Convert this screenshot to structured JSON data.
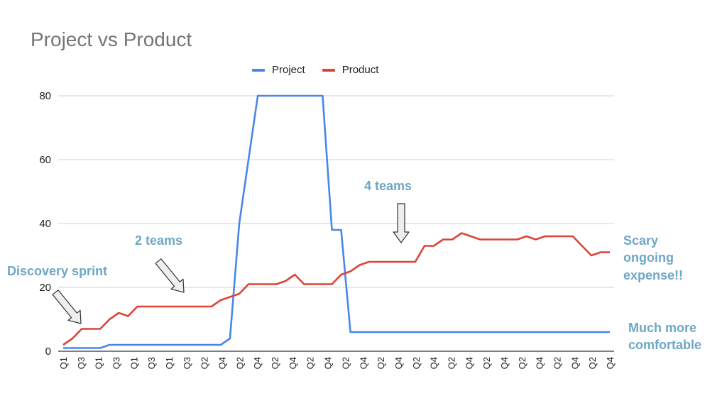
{
  "chart_data": {
    "type": "line",
    "title": "Project vs Product",
    "xlabel": "",
    "ylabel": "",
    "ylim": [
      0,
      80
    ],
    "yticks": [
      0,
      20,
      40,
      60,
      80
    ],
    "grid": true,
    "legend_position": "top",
    "x": [
      "Q1",
      "Q2",
      "Q3",
      "Q4",
      "Q1",
      "Q2",
      "Q3",
      "Q4",
      "Q1",
      "Q2",
      "Q3",
      "Q4",
      "Q1",
      "Q2",
      "Q3",
      "Q4",
      "Q1",
      "Q2",
      "Q3",
      "Q4",
      "Q1",
      "Q2",
      "Q3",
      "Q4",
      "Q1",
      "Q2",
      "Q3",
      "Q4",
      "Q1",
      "Q2",
      "Q3",
      "Q4",
      "Q1",
      "Q2",
      "Q3",
      "Q4",
      "Q1",
      "Q2",
      "Q3",
      "Q4",
      "Q1",
      "Q2",
      "Q3",
      "Q4",
      "Q1",
      "Q2",
      "Q3",
      "Q4",
      "Q1",
      "Q2",
      "Q3",
      "Q4",
      "Q1",
      "Q2",
      "Q3",
      "Q4",
      "Q1",
      "Q2",
      "Q3",
      "Q4"
    ],
    "x_tick_labels": [
      "Q1",
      "Q3",
      "Q1",
      "Q3",
      "Q1",
      "Q3",
      "Q1",
      "Q3",
      "Q2",
      "Q4",
      "Q2",
      "Q4",
      "Q2",
      "Q4",
      "Q2",
      "Q4",
      "Q2",
      "Q4",
      "Q2",
      "Q4",
      "Q2",
      "Q4",
      "Q2",
      "Q4",
      "Q2",
      "Q4",
      "Q2",
      "Q4",
      "Q2",
      "Q4",
      "Q2",
      "Q4"
    ],
    "series": [
      {
        "name": "Project",
        "color": "#4a86e8",
        "values": [
          1,
          1,
          1,
          1,
          1,
          2,
          2,
          2,
          2,
          2,
          2,
          2,
          2,
          2,
          2,
          2,
          2,
          2,
          4,
          40,
          60,
          80,
          80,
          80,
          80,
          80,
          80,
          80,
          80,
          38,
          38,
          6,
          6,
          6,
          6,
          6,
          6,
          6,
          6,
          6,
          6,
          6,
          6,
          6,
          6,
          6,
          6,
          6,
          6,
          6,
          6,
          6,
          6,
          6,
          6,
          6,
          6,
          6,
          6,
          6
        ]
      },
      {
        "name": "Product",
        "color": "#dc4438",
        "values": [
          2,
          4,
          7,
          7,
          7,
          10,
          12,
          11,
          14,
          14,
          14,
          14,
          14,
          14,
          14,
          14,
          14,
          16,
          17,
          18,
          21,
          21,
          21,
          21,
          22,
          24,
          21,
          21,
          21,
          21,
          24,
          25,
          27,
          28,
          28,
          28,
          28,
          28,
          28,
          33,
          33,
          35,
          35,
          37,
          36,
          35,
          35,
          35,
          35,
          35,
          36,
          35,
          36,
          36,
          36,
          36,
          33,
          30,
          31,
          31
        ]
      }
    ],
    "annotations": [
      {
        "id": "discovery",
        "text": "Discovery sprint"
      },
      {
        "id": "two-teams",
        "text": "2 teams"
      },
      {
        "id": "four-teams",
        "text": "4 teams"
      },
      {
        "id": "scary",
        "lines": [
          "Scary",
          "ongoing",
          "expense!!"
        ]
      },
      {
        "id": "comfortable",
        "lines": [
          "Much more",
          "comfortable"
        ]
      }
    ]
  }
}
